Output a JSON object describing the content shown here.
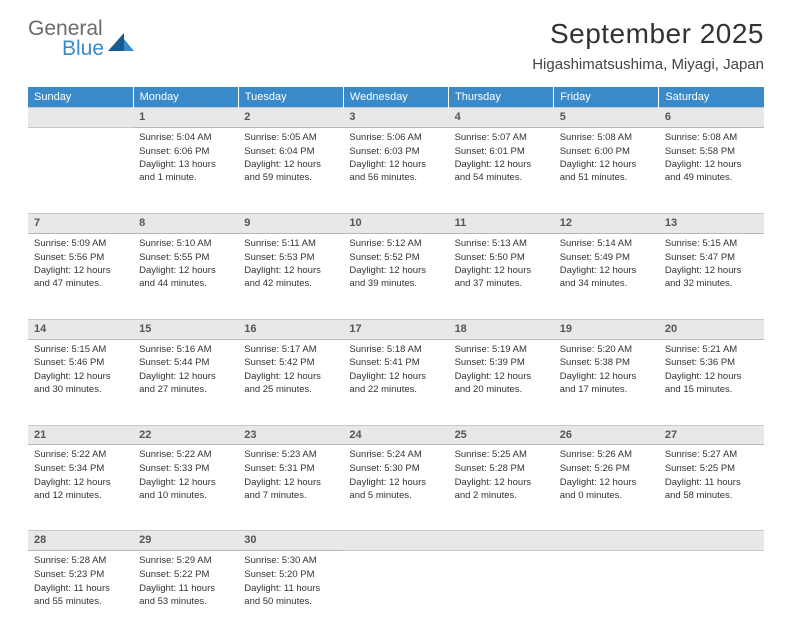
{
  "logo": {
    "line1": "General",
    "line2": "Blue",
    "color_gray": "#6a6a6a",
    "color_blue": "#3a8ac9"
  },
  "title": "September 2025",
  "location": "Higashimatsushima, Miyagi, Japan",
  "header_bg": "#3a8ac9",
  "daynum_bg": "#e8e8e8",
  "weekdays": [
    "Sunday",
    "Monday",
    "Tuesday",
    "Wednesday",
    "Thursday",
    "Friday",
    "Saturday"
  ],
  "weeks": [
    [
      null,
      {
        "n": "1",
        "sr": "Sunrise: 5:04 AM",
        "ss": "Sunset: 6:06 PM",
        "dl": "Daylight: 13 hours and 1 minute."
      },
      {
        "n": "2",
        "sr": "Sunrise: 5:05 AM",
        "ss": "Sunset: 6:04 PM",
        "dl": "Daylight: 12 hours and 59 minutes."
      },
      {
        "n": "3",
        "sr": "Sunrise: 5:06 AM",
        "ss": "Sunset: 6:03 PM",
        "dl": "Daylight: 12 hours and 56 minutes."
      },
      {
        "n": "4",
        "sr": "Sunrise: 5:07 AM",
        "ss": "Sunset: 6:01 PM",
        "dl": "Daylight: 12 hours and 54 minutes."
      },
      {
        "n": "5",
        "sr": "Sunrise: 5:08 AM",
        "ss": "Sunset: 6:00 PM",
        "dl": "Daylight: 12 hours and 51 minutes."
      },
      {
        "n": "6",
        "sr": "Sunrise: 5:08 AM",
        "ss": "Sunset: 5:58 PM",
        "dl": "Daylight: 12 hours and 49 minutes."
      }
    ],
    [
      {
        "n": "7",
        "sr": "Sunrise: 5:09 AM",
        "ss": "Sunset: 5:56 PM",
        "dl": "Daylight: 12 hours and 47 minutes."
      },
      {
        "n": "8",
        "sr": "Sunrise: 5:10 AM",
        "ss": "Sunset: 5:55 PM",
        "dl": "Daylight: 12 hours and 44 minutes."
      },
      {
        "n": "9",
        "sr": "Sunrise: 5:11 AM",
        "ss": "Sunset: 5:53 PM",
        "dl": "Daylight: 12 hours and 42 minutes."
      },
      {
        "n": "10",
        "sr": "Sunrise: 5:12 AM",
        "ss": "Sunset: 5:52 PM",
        "dl": "Daylight: 12 hours and 39 minutes."
      },
      {
        "n": "11",
        "sr": "Sunrise: 5:13 AM",
        "ss": "Sunset: 5:50 PM",
        "dl": "Daylight: 12 hours and 37 minutes."
      },
      {
        "n": "12",
        "sr": "Sunrise: 5:14 AM",
        "ss": "Sunset: 5:49 PM",
        "dl": "Daylight: 12 hours and 34 minutes."
      },
      {
        "n": "13",
        "sr": "Sunrise: 5:15 AM",
        "ss": "Sunset: 5:47 PM",
        "dl": "Daylight: 12 hours and 32 minutes."
      }
    ],
    [
      {
        "n": "14",
        "sr": "Sunrise: 5:15 AM",
        "ss": "Sunset: 5:46 PM",
        "dl": "Daylight: 12 hours and 30 minutes."
      },
      {
        "n": "15",
        "sr": "Sunrise: 5:16 AM",
        "ss": "Sunset: 5:44 PM",
        "dl": "Daylight: 12 hours and 27 minutes."
      },
      {
        "n": "16",
        "sr": "Sunrise: 5:17 AM",
        "ss": "Sunset: 5:42 PM",
        "dl": "Daylight: 12 hours and 25 minutes."
      },
      {
        "n": "17",
        "sr": "Sunrise: 5:18 AM",
        "ss": "Sunset: 5:41 PM",
        "dl": "Daylight: 12 hours and 22 minutes."
      },
      {
        "n": "18",
        "sr": "Sunrise: 5:19 AM",
        "ss": "Sunset: 5:39 PM",
        "dl": "Daylight: 12 hours and 20 minutes."
      },
      {
        "n": "19",
        "sr": "Sunrise: 5:20 AM",
        "ss": "Sunset: 5:38 PM",
        "dl": "Daylight: 12 hours and 17 minutes."
      },
      {
        "n": "20",
        "sr": "Sunrise: 5:21 AM",
        "ss": "Sunset: 5:36 PM",
        "dl": "Daylight: 12 hours and 15 minutes."
      }
    ],
    [
      {
        "n": "21",
        "sr": "Sunrise: 5:22 AM",
        "ss": "Sunset: 5:34 PM",
        "dl": "Daylight: 12 hours and 12 minutes."
      },
      {
        "n": "22",
        "sr": "Sunrise: 5:22 AM",
        "ss": "Sunset: 5:33 PM",
        "dl": "Daylight: 12 hours and 10 minutes."
      },
      {
        "n": "23",
        "sr": "Sunrise: 5:23 AM",
        "ss": "Sunset: 5:31 PM",
        "dl": "Daylight: 12 hours and 7 minutes."
      },
      {
        "n": "24",
        "sr": "Sunrise: 5:24 AM",
        "ss": "Sunset: 5:30 PM",
        "dl": "Daylight: 12 hours and 5 minutes."
      },
      {
        "n": "25",
        "sr": "Sunrise: 5:25 AM",
        "ss": "Sunset: 5:28 PM",
        "dl": "Daylight: 12 hours and 2 minutes."
      },
      {
        "n": "26",
        "sr": "Sunrise: 5:26 AM",
        "ss": "Sunset: 5:26 PM",
        "dl": "Daylight: 12 hours and 0 minutes."
      },
      {
        "n": "27",
        "sr": "Sunrise: 5:27 AM",
        "ss": "Sunset: 5:25 PM",
        "dl": "Daylight: 11 hours and 58 minutes."
      }
    ],
    [
      {
        "n": "28",
        "sr": "Sunrise: 5:28 AM",
        "ss": "Sunset: 5:23 PM",
        "dl": "Daylight: 11 hours and 55 minutes."
      },
      {
        "n": "29",
        "sr": "Sunrise: 5:29 AM",
        "ss": "Sunset: 5:22 PM",
        "dl": "Daylight: 11 hours and 53 minutes."
      },
      {
        "n": "30",
        "sr": "Sunrise: 5:30 AM",
        "ss": "Sunset: 5:20 PM",
        "dl": "Daylight: 11 hours and 50 minutes."
      },
      null,
      null,
      null,
      null
    ]
  ]
}
